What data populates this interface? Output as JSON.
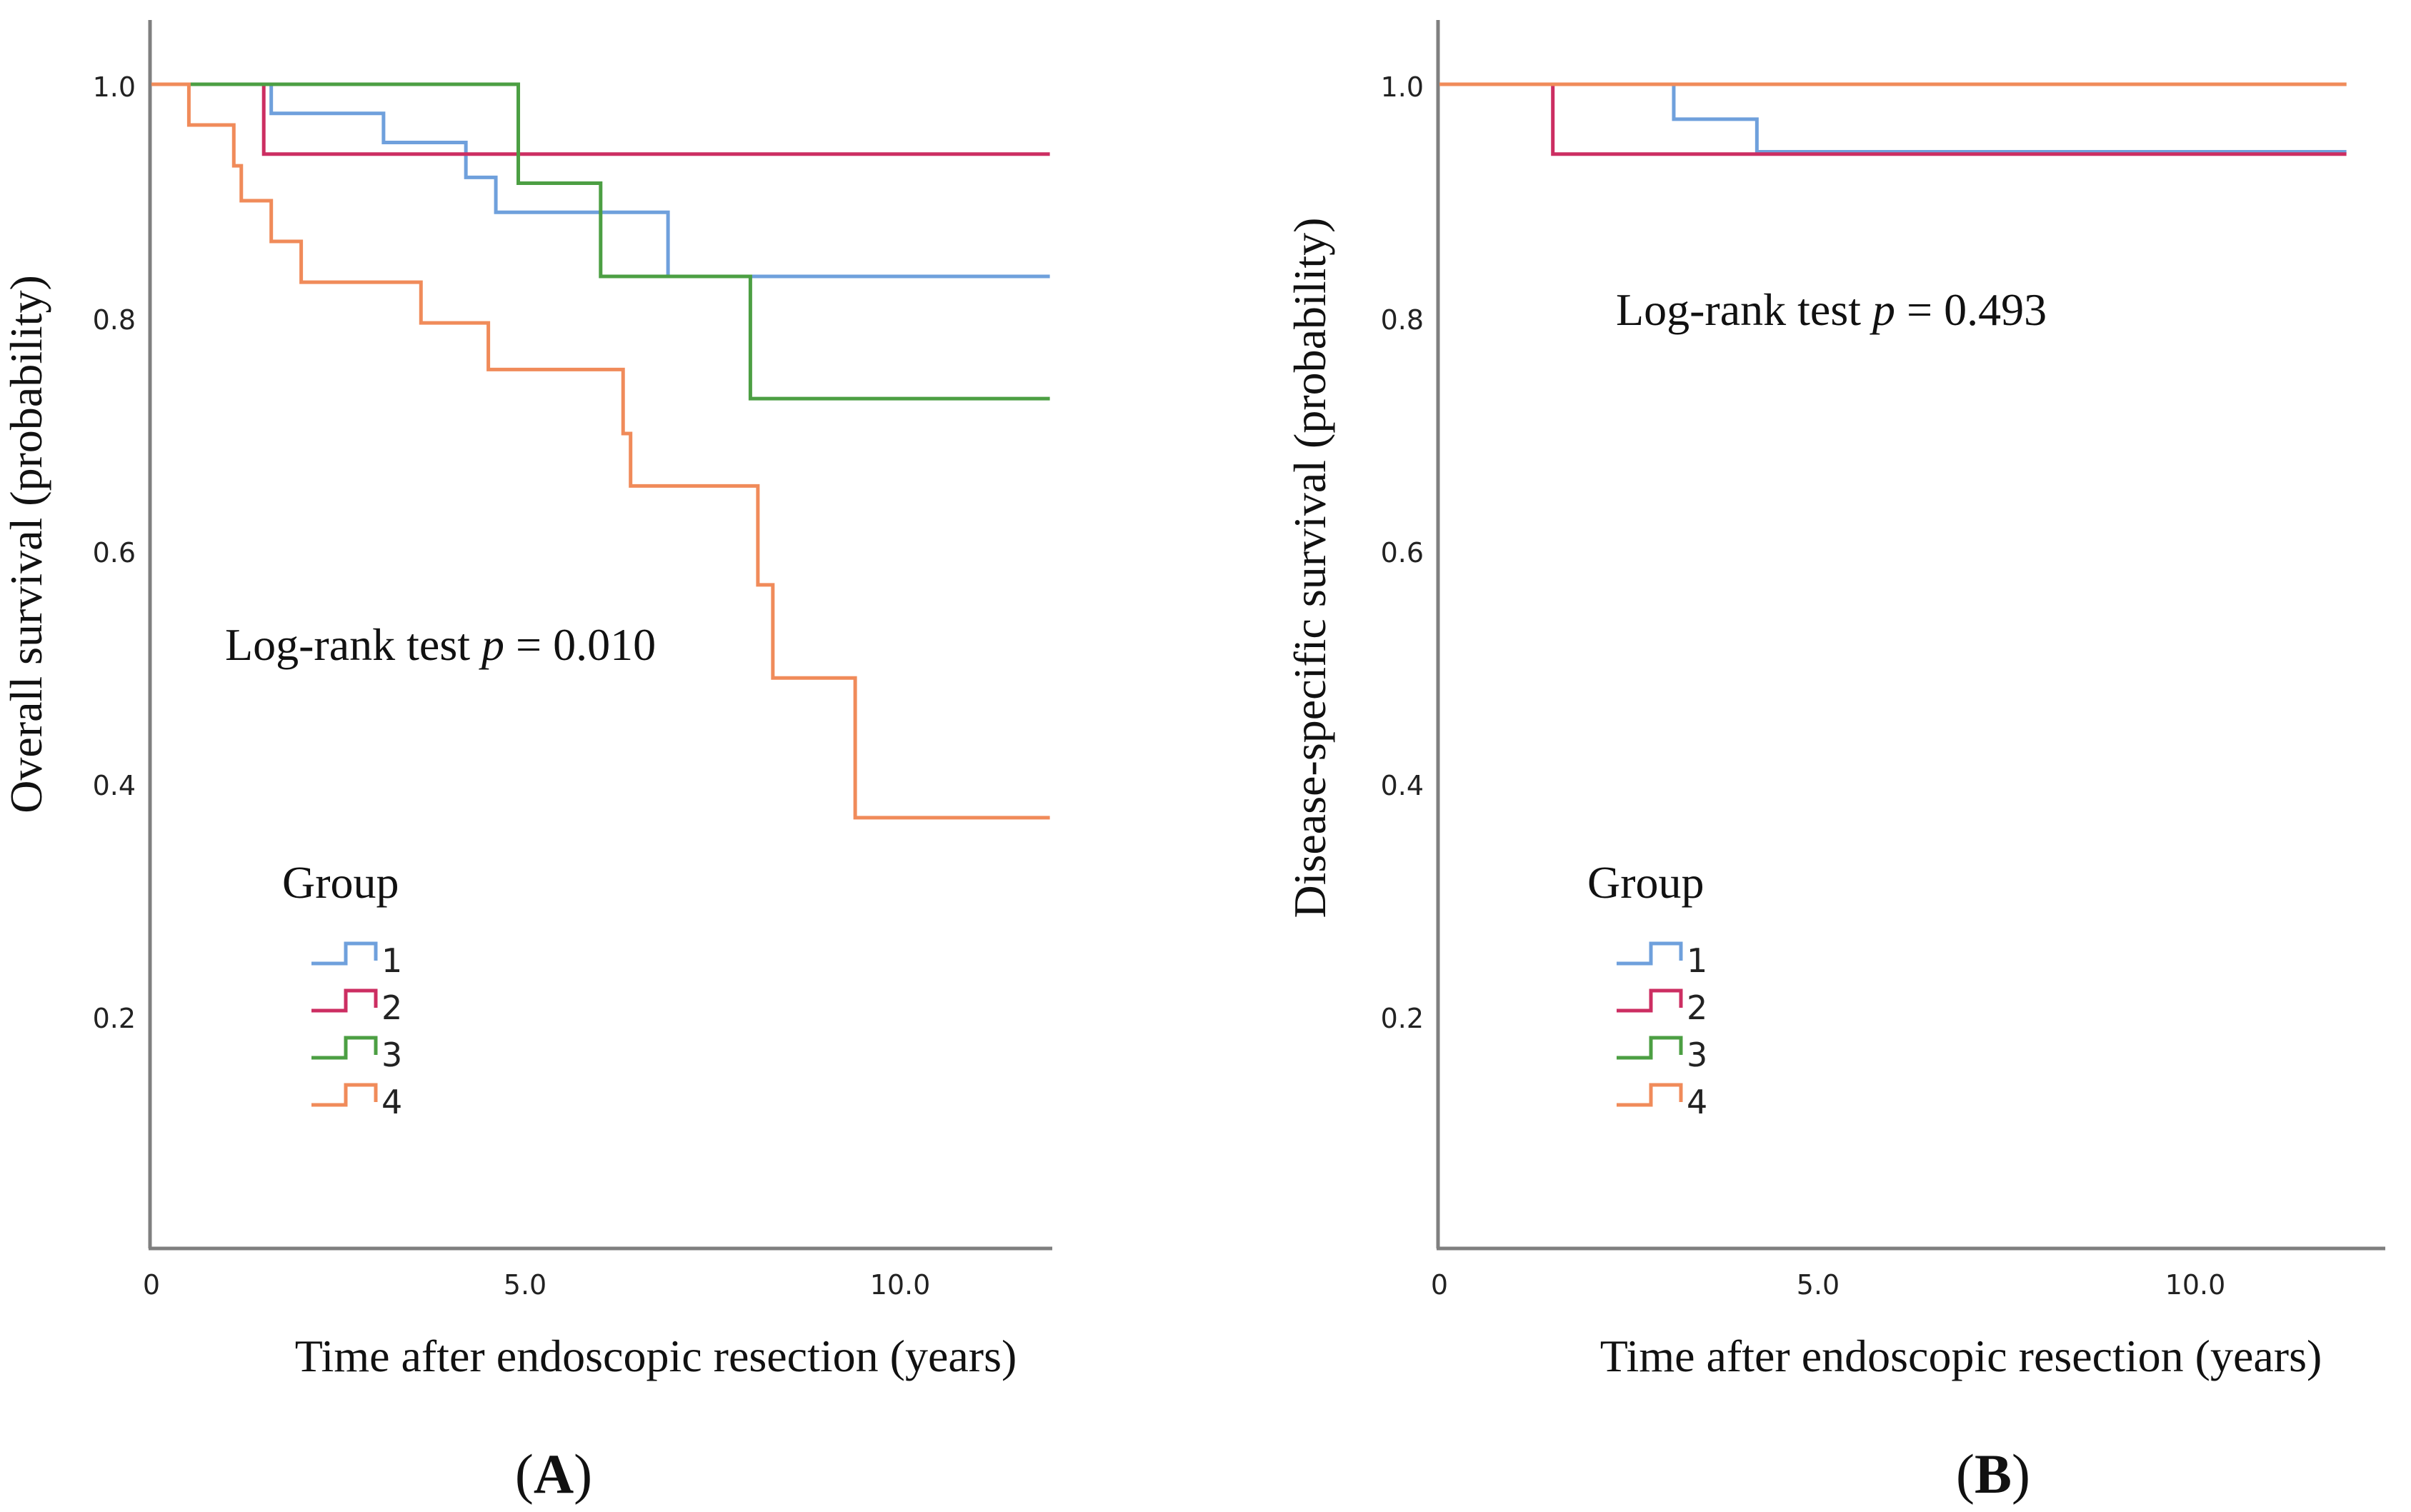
{
  "figure": {
    "panel_captions": [
      {
        "open": "(",
        "letter": "A",
        "close": ")"
      },
      {
        "open": "(",
        "letter": "B",
        "close": ")"
      }
    ]
  },
  "chart_data": [
    {
      "type": "line",
      "subtype": "kaplan-meier",
      "panel": "A",
      "ylabel": "Overall survival  (probability)",
      "xlabel": "Time after endoscopic resection (years)",
      "xlim": [
        0,
        12
      ],
      "ylim": [
        0,
        1.05
      ],
      "x_ticks": [
        0,
        5,
        10
      ],
      "x_tick_labels": [
        "0",
        "5.0",
        "10.0"
      ],
      "y_ticks": [
        0.2,
        0.4,
        0.6,
        0.8,
        1.0
      ],
      "y_tick_labels": [
        "0.2",
        "0.4",
        "0.6",
        "0.8",
        "1.0"
      ],
      "annotation": {
        "prefix": "Log-rank test ",
        "italic": "p",
        "suffix": " = 0.010"
      },
      "legend": {
        "title": "Group",
        "placement": "lower-left"
      },
      "series": [
        {
          "name": "1",
          "color": "#6fa0dc",
          "steps": [
            [
              0,
              1.0
            ],
            [
              1.6,
              0.975
            ],
            [
              3.1,
              0.95
            ],
            [
              4.2,
              0.92
            ],
            [
              4.6,
              0.89
            ],
            [
              6.9,
              0.835
            ],
            [
              12,
              0.835
            ]
          ]
        },
        {
          "name": "2",
          "color": "#cc2e62",
          "steps": [
            [
              0,
              1.0
            ],
            [
              1.5,
              0.94
            ],
            [
              12,
              0.94
            ]
          ]
        },
        {
          "name": "3",
          "color": "#4c9f43",
          "steps": [
            [
              0,
              1.0
            ],
            [
              4.9,
              0.915
            ],
            [
              6.0,
              0.835
            ],
            [
              8.0,
              0.73
            ],
            [
              12,
              0.73
            ]
          ]
        },
        {
          "name": "4",
          "color": "#f08b5a",
          "steps": [
            [
              0,
              1.0
            ],
            [
              0.5,
              0.965
            ],
            [
              1.1,
              0.93
            ],
            [
              1.2,
              0.9
            ],
            [
              1.6,
              0.865
            ],
            [
              2.0,
              0.83
            ],
            [
              3.6,
              0.795
            ],
            [
              4.5,
              0.755
            ],
            [
              6.3,
              0.7
            ],
            [
              6.4,
              0.655
            ],
            [
              8.1,
              0.57
            ],
            [
              8.3,
              0.49
            ],
            [
              9.4,
              0.37
            ],
            [
              12,
              0.37
            ]
          ]
        }
      ]
    },
    {
      "type": "line",
      "subtype": "kaplan-meier",
      "panel": "B",
      "ylabel": "Disease-specific survival  (probability)",
      "xlabel": "Time after endoscopic resection (years)",
      "xlim": [
        0,
        12
      ],
      "ylim": [
        0,
        1.05
      ],
      "x_ticks": [
        0,
        5,
        10
      ],
      "x_tick_labels": [
        "0",
        "5.0",
        "10.0"
      ],
      "y_ticks": [
        0.2,
        0.4,
        0.6,
        0.8,
        1.0
      ],
      "y_tick_labels": [
        "0.2",
        "0.4",
        "0.6",
        "0.8",
        "1.0"
      ],
      "annotation": {
        "prefix": "Log-rank test ",
        "italic": "p",
        "suffix": " = 0.493"
      },
      "legend": {
        "title": "Group",
        "placement": "lower-left"
      },
      "series": [
        {
          "name": "1",
          "color": "#6fa0dc",
          "steps": [
            [
              0,
              1.0
            ],
            [
              3.1,
              0.97
            ],
            [
              4.2,
              0.942
            ],
            [
              12,
              0.942
            ]
          ]
        },
        {
          "name": "2",
          "color": "#cc2e62",
          "steps": [
            [
              0,
              1.0
            ],
            [
              1.5,
              0.94
            ],
            [
              12,
              0.94
            ]
          ]
        },
        {
          "name": "3",
          "color": "#4c9f43",
          "steps": [
            [
              0,
              1.0
            ],
            [
              12,
              1.0
            ]
          ]
        },
        {
          "name": "4",
          "color": "#f08b5a",
          "steps": [
            [
              0,
              1.0
            ],
            [
              12,
              1.0
            ]
          ]
        }
      ]
    }
  ]
}
